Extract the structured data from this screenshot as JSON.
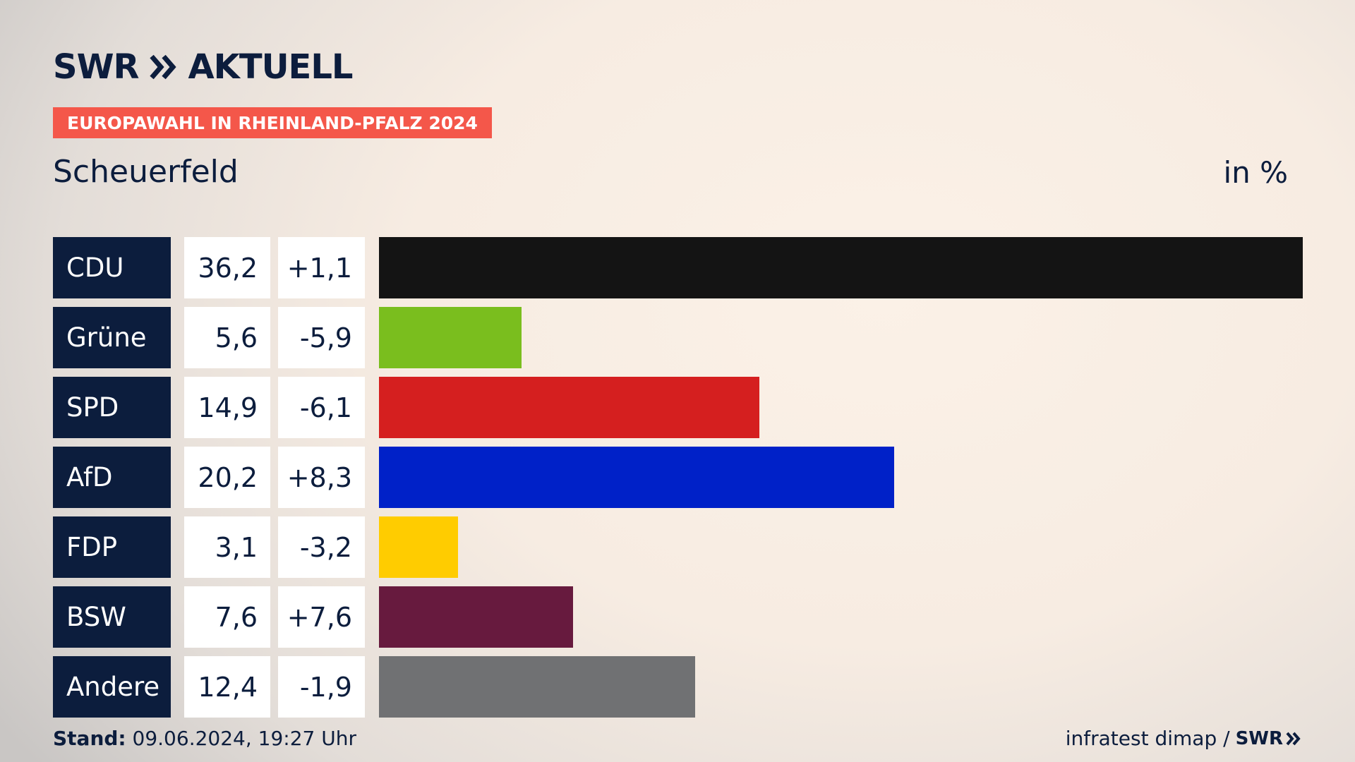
{
  "brand": {
    "name": "SWR",
    "section": "AKTUELL"
  },
  "badge": "EUROPAWAHL IN RHEINLAND-PFALZ 2024",
  "region": "Scheuerfeld",
  "unit": "in %",
  "footer": {
    "stand_label": "Stand:",
    "stand_value": "09.06.2024, 19:27 Uhr",
    "source": "infratest dimap /",
    "source_logo": "SWR"
  },
  "colors": {
    "navy": "#0c1d3d",
    "badge": "#f4574a"
  },
  "chart_data": {
    "type": "bar",
    "orientation": "horizontal",
    "title": "Scheuerfeld",
    "unit": "in %",
    "xlim": [
      0,
      36.2
    ],
    "rows": [
      {
        "party": "CDU",
        "value": 36.2,
        "value_label": "36,2",
        "change_label": "+1,1",
        "color": "#141414"
      },
      {
        "party": "Grüne",
        "value": 5.6,
        "value_label": "5,6",
        "change_label": "-5,9",
        "color": "#7abe1e"
      },
      {
        "party": "SPD",
        "value": 14.9,
        "value_label": "14,9",
        "change_label": "-6,1",
        "color": "#d51f1f"
      },
      {
        "party": "AfD",
        "value": 20.2,
        "value_label": "20,2",
        "change_label": "+8,3",
        "color": "#0021c8"
      },
      {
        "party": "FDP",
        "value": 3.1,
        "value_label": "3,1",
        "change_label": "-3,2",
        "color": "#ffcc00"
      },
      {
        "party": "BSW",
        "value": 7.6,
        "value_label": "7,6",
        "change_label": "+7,6",
        "color": "#671a3e"
      },
      {
        "party": "Andere",
        "value": 12.4,
        "value_label": "12,4",
        "change_label": "-1,9",
        "color": "#707173"
      }
    ]
  }
}
